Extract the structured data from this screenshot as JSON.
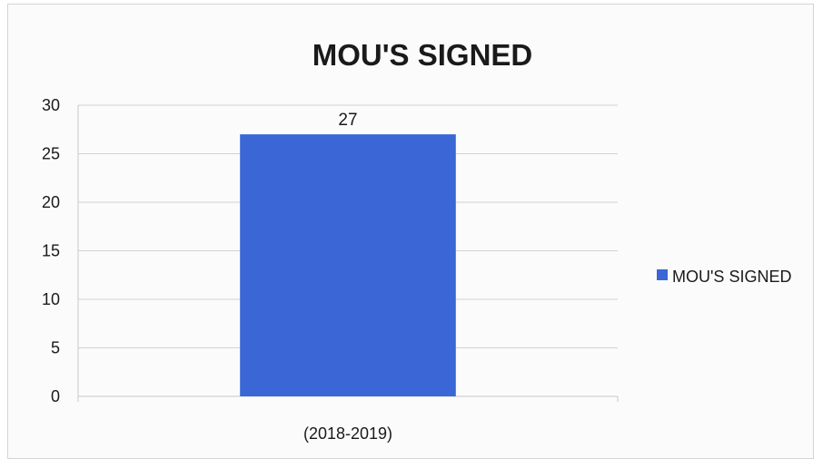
{
  "chart_data": {
    "type": "bar",
    "title": "MOU'S SIGNED",
    "categories": [
      "(2018-2019)"
    ],
    "series": [
      {
        "name": "MOU'S SIGNED",
        "values": [
          27
        ],
        "color": "#3a66d6"
      }
    ],
    "data_labels": [
      "27"
    ],
    "ylim": [
      0,
      30
    ],
    "yticks": [
      0,
      5,
      10,
      15,
      20,
      25,
      30
    ],
    "ytick_labels": [
      "0",
      "5",
      "10",
      "15",
      "20",
      "25",
      "30"
    ],
    "grid": true,
    "legend_position": "right"
  }
}
